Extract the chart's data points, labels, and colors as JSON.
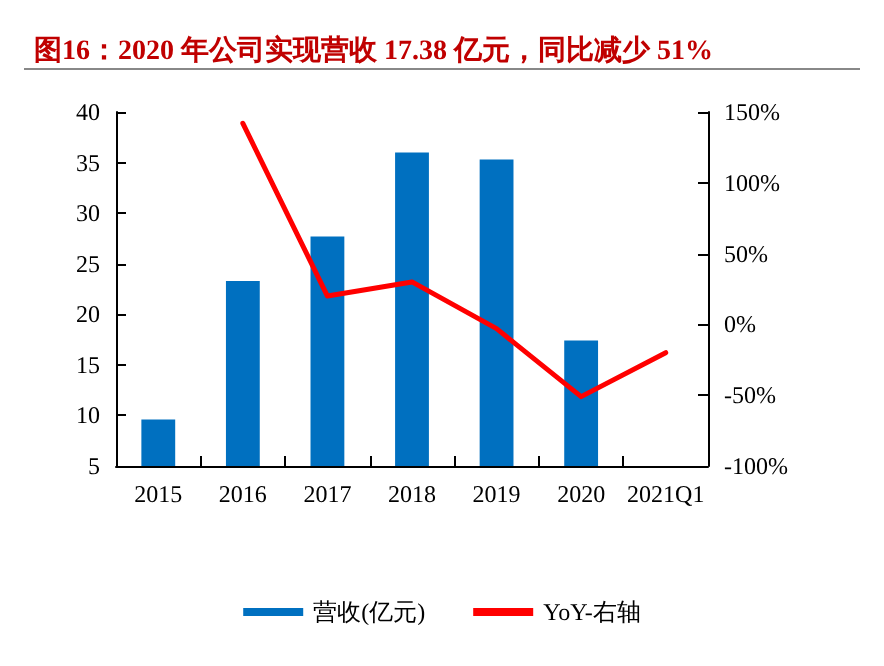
{
  "chart_data": {
    "type": "bar",
    "title": "图16：2020 年公司实现营收 17.38 亿元，同比减少 51%",
    "categories": [
      "2015",
      "2016",
      "2017",
      "2018",
      "2019",
      "2020",
      "2021Q1"
    ],
    "series": [
      {
        "name": "营收(亿元)",
        "color": "#0070c0",
        "values": [
          9.6,
          23.3,
          27.7,
          36,
          35.3,
          17.4,
          null
        ]
      },
      {
        "name": "YoY-右轴",
        "type": "line",
        "axis": "y2",
        "color": "#ff0000",
        "values": [
          null,
          142,
          20,
          30,
          -3,
          -51,
          -20
        ]
      }
    ],
    "ylim": [
      5,
      40
    ],
    "yticks": [
      5,
      10,
      15,
      20,
      25,
      30,
      35,
      40
    ],
    "y2lim": [
      -100,
      150
    ],
    "y2ticks": [
      {
        "value": -100,
        "label": "-100%"
      },
      {
        "value": -50,
        "label": "-50%"
      },
      {
        "value": 0,
        "label": "0%"
      },
      {
        "value": 50,
        "label": "50%"
      },
      {
        "value": 100,
        "label": "100%"
      },
      {
        "value": 150,
        "label": "150%"
      }
    ],
    "grid": false,
    "legend": "bottom",
    "marker": "none",
    "line_style": "solid"
  }
}
